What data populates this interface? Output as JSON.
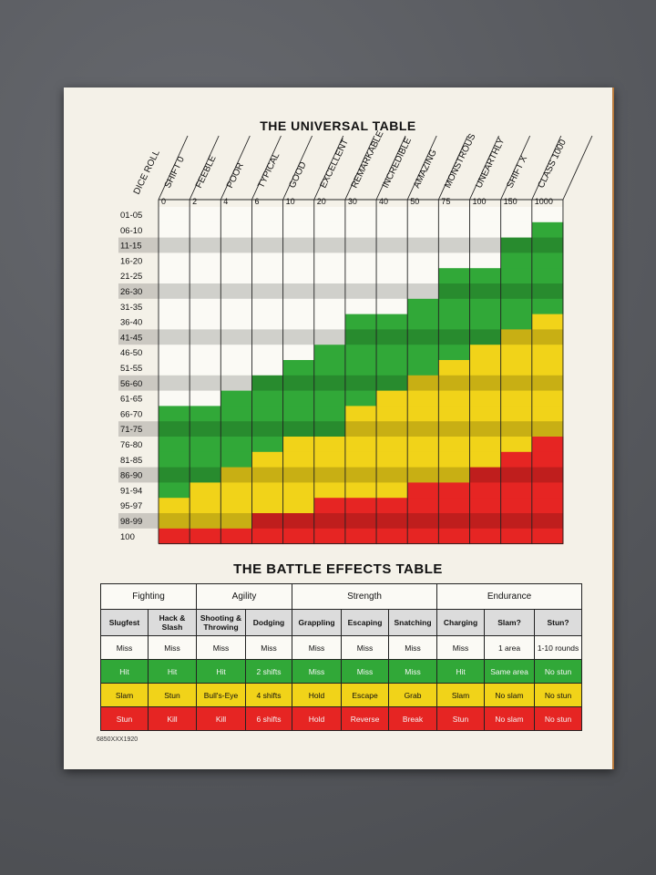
{
  "universal_table": {
    "title": "THE UNIVERSAL TABLE",
    "dice_roll_label": "DICE ROLL",
    "columns": [
      {
        "name": "SHIFT 0",
        "rank": "0"
      },
      {
        "name": "FEEBLE",
        "rank": "2"
      },
      {
        "name": "POOR",
        "rank": "4"
      },
      {
        "name": "TYPICAL",
        "rank": "6"
      },
      {
        "name": "GOOD",
        "rank": "10"
      },
      {
        "name": "EXCELLENT",
        "rank": "20"
      },
      {
        "name": "REMARKABLE",
        "rank": "30"
      },
      {
        "name": "INCREDIBLE",
        "rank": "40"
      },
      {
        "name": "AMAZING",
        "rank": "50"
      },
      {
        "name": "MONSTROUS",
        "rank": "75"
      },
      {
        "name": "UNEARTHLY",
        "rank": "100"
      },
      {
        "name": "SHIFT X",
        "rank": "150"
      },
      {
        "name": "CLASS 1000",
        "rank": "1000"
      }
    ],
    "rows": [
      "01-05",
      "06-10",
      "11-15",
      "16-20",
      "21-25",
      "26-30",
      "31-35",
      "36-40",
      "41-45",
      "46-50",
      "51-55",
      "56-60",
      "61-65",
      "66-70",
      "71-75",
      "76-80",
      "81-85",
      "86-90",
      "91-94",
      "95-97",
      "98-99",
      "100"
    ],
    "shaded_rows": [
      2,
      5,
      8,
      11,
      14,
      17,
      20
    ],
    "color_grid": [
      "WWWWWWWWWWWWW",
      "WWWWWWWWWWWWG",
      "WWWWWWWWWWWGG",
      "WWWWWWWWWWWGG",
      "WWWWWWWWWGGGG",
      "WWWWWWWWWGGGG",
      "WWWWWWWWGGGGG",
      "WWWWWWGGGGGGY",
      "WWWWWWGGGGGYY",
      "WWWWWGGGGGYYY",
      "WWWWGGGGGYYYY",
      "WWWGGGGGYYYYY",
      "WWGGGGGYYYYYY",
      "GGGGGGYYYYYYY",
      "GGGGGGYYYYYYY",
      "GGGGYYYYYYYYR",
      "GGGYYYYYYYYRR",
      "GGYYYYYYYYRRR",
      "GYYYYYYYRRRRR",
      "YYYYYRRRRRRRR",
      "YYYRRRRRRRRRR",
      "RRRRRRRRRRRRR"
    ],
    "colors": {
      "W": "#fbfaf5",
      "G": "#31a838",
      "Y": "#f1d319",
      "R": "#e62523"
    }
  },
  "battle_effects": {
    "title": "THE BATTLE EFFECTS TABLE",
    "groups": [
      {
        "label": "Fighting",
        "span": 2
      },
      {
        "label": "Agility",
        "span": 2
      },
      {
        "label": "Strength",
        "span": 3
      },
      {
        "label": "Endurance",
        "span": 3
      }
    ],
    "columns": [
      "Slugfest",
      "Hack & Slash",
      "Shooting & Throwing",
      "Dodging",
      "Grappling",
      "Escaping",
      "Snatching",
      "Charging",
      "Slam?",
      "Stun?"
    ],
    "rows": {
      "white": [
        "Miss",
        "Miss",
        "Miss",
        "Miss",
        "Miss",
        "Miss",
        "Miss",
        "Miss",
        "1 area",
        "1-10 rounds"
      ],
      "green": [
        "Hit",
        "Hit",
        "Hit",
        "2 shifts",
        "Miss",
        "Miss",
        "Miss",
        "Hit",
        "Same area",
        "No stun"
      ],
      "yellow": [
        "Slam",
        "Stun",
        "Bull's-Eye",
        "4 shifts",
        "Hold",
        "Escape",
        "Grab",
        "Slam",
        "No slam",
        "No stun"
      ],
      "red": [
        "Stun",
        "Kill",
        "Kill",
        "6 shifts",
        "Hold",
        "Reverse",
        "Break",
        "Stun",
        "No slam",
        "No stun"
      ]
    }
  },
  "product_code": "6850XXX1920"
}
